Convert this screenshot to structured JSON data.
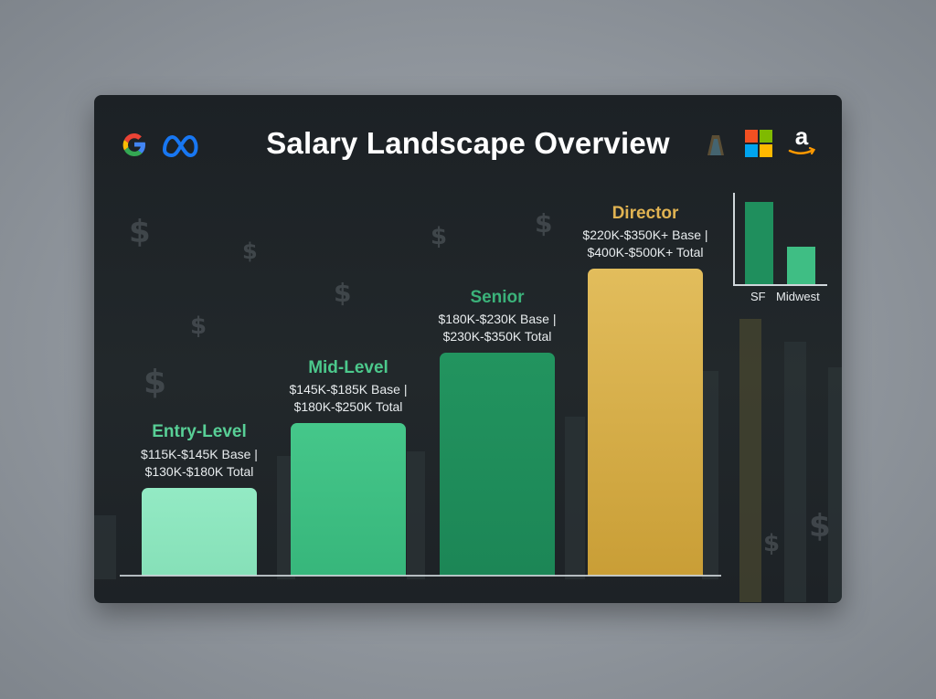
{
  "title": "Salary Landscape Overview",
  "logos": [
    "google-logo",
    "meta-logo",
    "unknown-logo",
    "microsoft-logo",
    "amazon-logo"
  ],
  "colors": {
    "entry": "#8ee6bf",
    "mid": "#3fbe84",
    "senior": "#1f8f5d",
    "director": "#d9b34e",
    "director_label": "#e0b352",
    "green_label": "#4fc98e"
  },
  "chart_data": [
    {
      "type": "bar",
      "categories": [
        "Entry-Level",
        "Mid-Level",
        "Senior",
        "Director"
      ],
      "values": [
        1,
        2.2,
        3.3,
        4.8
      ],
      "labels": [
        {
          "name": "Entry-Level",
          "line1": "$115K-$145K Base |",
          "line2": "$130K-$180K Total"
        },
        {
          "name": "Mid-Level",
          "line1": "$145K-$185K Base |",
          "line2": "$180K-$250K Total"
        },
        {
          "name": "Senior",
          "line1": "$180K-$230K Base |",
          "line2": "$230K-$350K Total"
        },
        {
          "name": "Director",
          "line1": "$220K-$350K+ Base |",
          "line2": "$400K-$500K+ Total"
        }
      ],
      "title": "Salary Landscape Overview",
      "xlabel": "",
      "ylabel": "",
      "grid": false
    },
    {
      "type": "bar",
      "categories": [
        "SF",
        "Midwest"
      ],
      "values": [
        1.0,
        0.45
      ],
      "xlabel": "",
      "ylabel": "",
      "legend": "none"
    }
  ]
}
